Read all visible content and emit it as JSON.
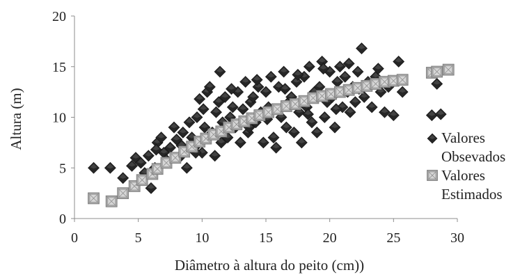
{
  "chart_data": {
    "type": "scatter",
    "xlabel": "Diâmetro à altura do peito (cm))",
    "ylabel": "Altura (m)",
    "xlim": [
      0,
      30
    ],
    "ylim": [
      0,
      20
    ],
    "xticks": [
      "0",
      "5",
      "10",
      "15",
      "20",
      "25",
      "30"
    ],
    "yticks": [
      "0",
      "5",
      "10",
      "15",
      "20"
    ],
    "grid": false,
    "legend_position": "right",
    "series": [
      {
        "name": "Valores Obsevados",
        "legend_lines": [
          "Valores",
          "Obsevados"
        ],
        "marker": "diamond",
        "color": "#262626",
        "points": [
          [
            1.5,
            5.0
          ],
          [
            2.8,
            5.0
          ],
          [
            3.8,
            4.0
          ],
          [
            4.5,
            5.2
          ],
          [
            4.8,
            6.0
          ],
          [
            5.2,
            5.5
          ],
          [
            5.5,
            4.5
          ],
          [
            5.8,
            6.2
          ],
          [
            6.0,
            3.0
          ],
          [
            6.3,
            5.0
          ],
          [
            6.5,
            7.5
          ],
          [
            6.8,
            8.0
          ],
          [
            7.0,
            6.5
          ],
          [
            7.2,
            5.8
          ],
          [
            7.5,
            7.0
          ],
          [
            7.8,
            9.0
          ],
          [
            8.0,
            7.8
          ],
          [
            8.2,
            6.0
          ],
          [
            8.5,
            8.5
          ],
          [
            8.8,
            5.0
          ],
          [
            9.0,
            9.5
          ],
          [
            9.2,
            8.0
          ],
          [
            9.4,
            7.0
          ],
          [
            9.6,
            10.0
          ],
          [
            9.8,
            11.8
          ],
          [
            10.0,
            6.5
          ],
          [
            10.2,
            9.0
          ],
          [
            10.4,
            12.5
          ],
          [
            10.6,
            13.0
          ],
          [
            10.8,
            8.5
          ],
          [
            11.0,
            6.2
          ],
          [
            11.1,
            10.5
          ],
          [
            11.3,
            11.5
          ],
          [
            11.4,
            14.5
          ],
          [
            11.6,
            9.5
          ],
          [
            11.8,
            12.0
          ],
          [
            12.0,
            8.0
          ],
          [
            12.2,
            10.0
          ],
          [
            12.4,
            11.0
          ],
          [
            12.6,
            9.0
          ],
          [
            12.8,
            12.5
          ],
          [
            13.0,
            7.5
          ],
          [
            13.2,
            10.8
          ],
          [
            13.4,
            13.5
          ],
          [
            13.6,
            8.5
          ],
          [
            13.8,
            11.5
          ],
          [
            14.0,
            12.0
          ],
          [
            14.2,
            9.5
          ],
          [
            14.4,
            13.0
          ],
          [
            14.6,
            10.5
          ],
          [
            14.8,
            7.5
          ],
          [
            15.0,
            12.5
          ],
          [
            15.2,
            11.0
          ],
          [
            15.4,
            14.0
          ],
          [
            15.6,
            8.0
          ],
          [
            15.8,
            7.0
          ],
          [
            16.0,
            13.0
          ],
          [
            16.2,
            10.0
          ],
          [
            16.4,
            14.5
          ],
          [
            16.6,
            9.0
          ],
          [
            16.8,
            11.5
          ],
          [
            17.0,
            12.0
          ],
          [
            17.2,
            8.5
          ],
          [
            17.4,
            13.5
          ],
          [
            17.6,
            10.5
          ],
          [
            17.8,
            7.5
          ],
          [
            18.0,
            14.0
          ],
          [
            18.2,
            11.0
          ],
          [
            18.4,
            15.0
          ],
          [
            18.6,
            9.5
          ],
          [
            18.8,
            12.5
          ],
          [
            19.0,
            8.5
          ],
          [
            19.2,
            13.0
          ],
          [
            19.4,
            15.5
          ],
          [
            19.6,
            10.0
          ],
          [
            19.8,
            11.5
          ],
          [
            20.0,
            14.5
          ],
          [
            20.2,
            12.0
          ],
          [
            20.4,
            9.0
          ],
          [
            20.6,
            13.5
          ],
          [
            20.8,
            15.0
          ],
          [
            21.0,
            11.0
          ],
          [
            21.2,
            14.0
          ],
          [
            21.4,
            12.5
          ],
          [
            21.6,
            10.5
          ],
          [
            21.8,
            13.0
          ],
          [
            22.0,
            11.5
          ],
          [
            22.2,
            14.5
          ],
          [
            22.5,
            16.8
          ],
          [
            22.7,
            12.0
          ],
          [
            23.0,
            13.5
          ],
          [
            23.3,
            11.0
          ],
          [
            23.6,
            14.0
          ],
          [
            24.0,
            12.5
          ],
          [
            24.3,
            10.5
          ],
          [
            24.6,
            13.0
          ],
          [
            25.0,
            10.2
          ],
          [
            25.4,
            15.5
          ],
          [
            25.7,
            12.5
          ],
          [
            28.0,
            10.2
          ],
          [
            28.4,
            13.3
          ],
          [
            28.7,
            10.3
          ],
          [
            6.4,
            6.8
          ],
          [
            8.4,
            7.2
          ],
          [
            10.1,
            10.8
          ],
          [
            12.3,
            12.8
          ],
          [
            14.3,
            13.7
          ],
          [
            17.5,
            14.2
          ],
          [
            19.5,
            14.8
          ],
          [
            21.5,
            15.3
          ],
          [
            11.5,
            7.5
          ],
          [
            13.7,
            9.0
          ],
          [
            15.1,
            9.8
          ],
          [
            16.5,
            12.8
          ],
          [
            18.3,
            10.3
          ],
          [
            20.5,
            10.8
          ],
          [
            22.3,
            12.8
          ],
          [
            23.8,
            14.8
          ],
          [
            24.8,
            13.6
          ],
          [
            9.5,
            6.5
          ]
        ]
      },
      {
        "name": "Valores Estimados",
        "legend_lines": [
          "Valores",
          "Estimados"
        ],
        "marker": "square",
        "color": "#a6a6a6",
        "points": [
          [
            1.5,
            2.0
          ],
          [
            2.9,
            1.7
          ],
          [
            3.8,
            2.5
          ],
          [
            4.7,
            3.2
          ],
          [
            5.3,
            3.8
          ],
          [
            6.1,
            4.4
          ],
          [
            6.5,
            4.9
          ],
          [
            7.2,
            5.5
          ],
          [
            7.9,
            6.0
          ],
          [
            8.6,
            6.6
          ],
          [
            9.2,
            7.1
          ],
          [
            9.8,
            7.6
          ],
          [
            10.3,
            7.9
          ],
          [
            10.9,
            8.3
          ],
          [
            11.5,
            8.6
          ],
          [
            12.1,
            9.0
          ],
          [
            12.7,
            9.3
          ],
          [
            13.3,
            9.6
          ],
          [
            13.9,
            9.9
          ],
          [
            14.5,
            10.2
          ],
          [
            15.2,
            10.5
          ],
          [
            15.9,
            10.8
          ],
          [
            16.6,
            11.1
          ],
          [
            17.3,
            11.3
          ],
          [
            18.0,
            11.6
          ],
          [
            18.7,
            11.9
          ],
          [
            19.4,
            12.1
          ],
          [
            20.1,
            12.3
          ],
          [
            20.8,
            12.5
          ],
          [
            21.5,
            12.7
          ],
          [
            22.2,
            12.9
          ],
          [
            22.9,
            13.1
          ],
          [
            23.6,
            13.3
          ],
          [
            24.3,
            13.5
          ],
          [
            25.0,
            13.6
          ],
          [
            25.7,
            13.7
          ],
          [
            28.0,
            14.4
          ],
          [
            28.4,
            14.5
          ],
          [
            29.3,
            14.7
          ]
        ]
      }
    ]
  }
}
